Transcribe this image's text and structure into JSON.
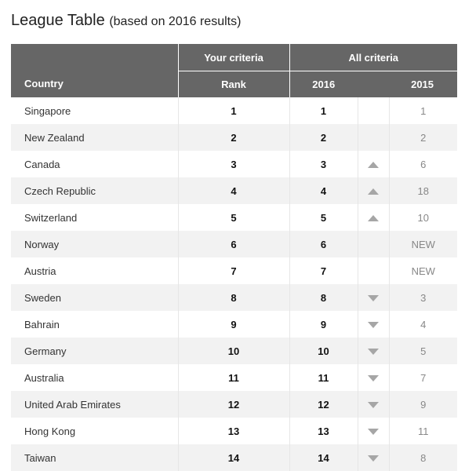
{
  "title": "League Table",
  "subtitle": "(based on 2016 results)",
  "headers": {
    "your_criteria": "Your criteria",
    "all_criteria": "All criteria",
    "country": "Country",
    "rank": "Rank",
    "year_2016": "2016",
    "year_2015": "2015"
  },
  "rows": [
    {
      "country": "Singapore",
      "rank": "1",
      "y2016": "1",
      "trend": "none",
      "y2015": "1"
    },
    {
      "country": "New Zealand",
      "rank": "2",
      "y2016": "2",
      "trend": "none",
      "y2015": "2"
    },
    {
      "country": "Canada",
      "rank": "3",
      "y2016": "3",
      "trend": "up",
      "y2015": "6"
    },
    {
      "country": "Czech Republic",
      "rank": "4",
      "y2016": "4",
      "trend": "up",
      "y2015": "18"
    },
    {
      "country": "Switzerland",
      "rank": "5",
      "y2016": "5",
      "trend": "up",
      "y2015": "10"
    },
    {
      "country": "Norway",
      "rank": "6",
      "y2016": "6",
      "trend": "none",
      "y2015": "NEW"
    },
    {
      "country": "Austria",
      "rank": "7",
      "y2016": "7",
      "trend": "none",
      "y2015": "NEW"
    },
    {
      "country": "Sweden",
      "rank": "8",
      "y2016": "8",
      "trend": "down",
      "y2015": "3"
    },
    {
      "country": "Bahrain",
      "rank": "9",
      "y2016": "9",
      "trend": "down",
      "y2015": "4"
    },
    {
      "country": "Germany",
      "rank": "10",
      "y2016": "10",
      "trend": "down",
      "y2015": "5"
    },
    {
      "country": "Australia",
      "rank": "11",
      "y2016": "11",
      "trend": "down",
      "y2015": "7"
    },
    {
      "country": "United Arab Emirates",
      "rank": "12",
      "y2016": "12",
      "trend": "down",
      "y2015": "9"
    },
    {
      "country": "Hong Kong",
      "rank": "13",
      "y2016": "13",
      "trend": "down",
      "y2015": "11"
    },
    {
      "country": "Taiwan",
      "rank": "14",
      "y2016": "14",
      "trend": "down",
      "y2015": "8"
    }
  ],
  "icons": {
    "up": "triangle-up-icon",
    "down": "triangle-down-icon"
  },
  "colors": {
    "header_bg": "#666666",
    "row_alt": "#f2f2f2",
    "arrow": "#a6a6a6"
  }
}
